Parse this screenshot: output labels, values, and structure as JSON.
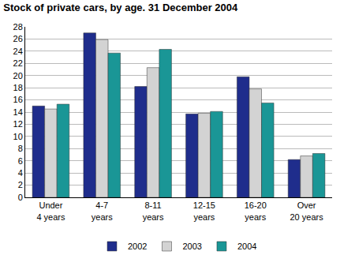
{
  "chart_data": {
    "type": "bar",
    "title": "Stock of private cars, by age. 31 December 2004",
    "categories": [
      "Under 4 years",
      "4-7 years",
      "8-11 years",
      "12-15 years",
      "16-20 years",
      "Over 20 years"
    ],
    "series": [
      {
        "name": "2002",
        "color": "#1f2d8c",
        "values": [
          15.0,
          27.0,
          18.2,
          13.7,
          19.8,
          6.2
        ]
      },
      {
        "name": "2003",
        "color": "#d3d3d3",
        "values": [
          14.5,
          25.9,
          21.3,
          13.8,
          17.8,
          6.8
        ]
      },
      {
        "name": "2004",
        "color": "#1a9696",
        "values": [
          15.3,
          23.7,
          24.3,
          14.1,
          15.5,
          7.2
        ]
      }
    ],
    "ylim": [
      0,
      28
    ],
    "yticks": [
      0,
      2,
      4,
      6,
      8,
      10,
      12,
      14,
      16,
      18,
      20,
      22,
      24,
      26,
      28
    ],
    "grid": true,
    "legend": "bottom"
  }
}
